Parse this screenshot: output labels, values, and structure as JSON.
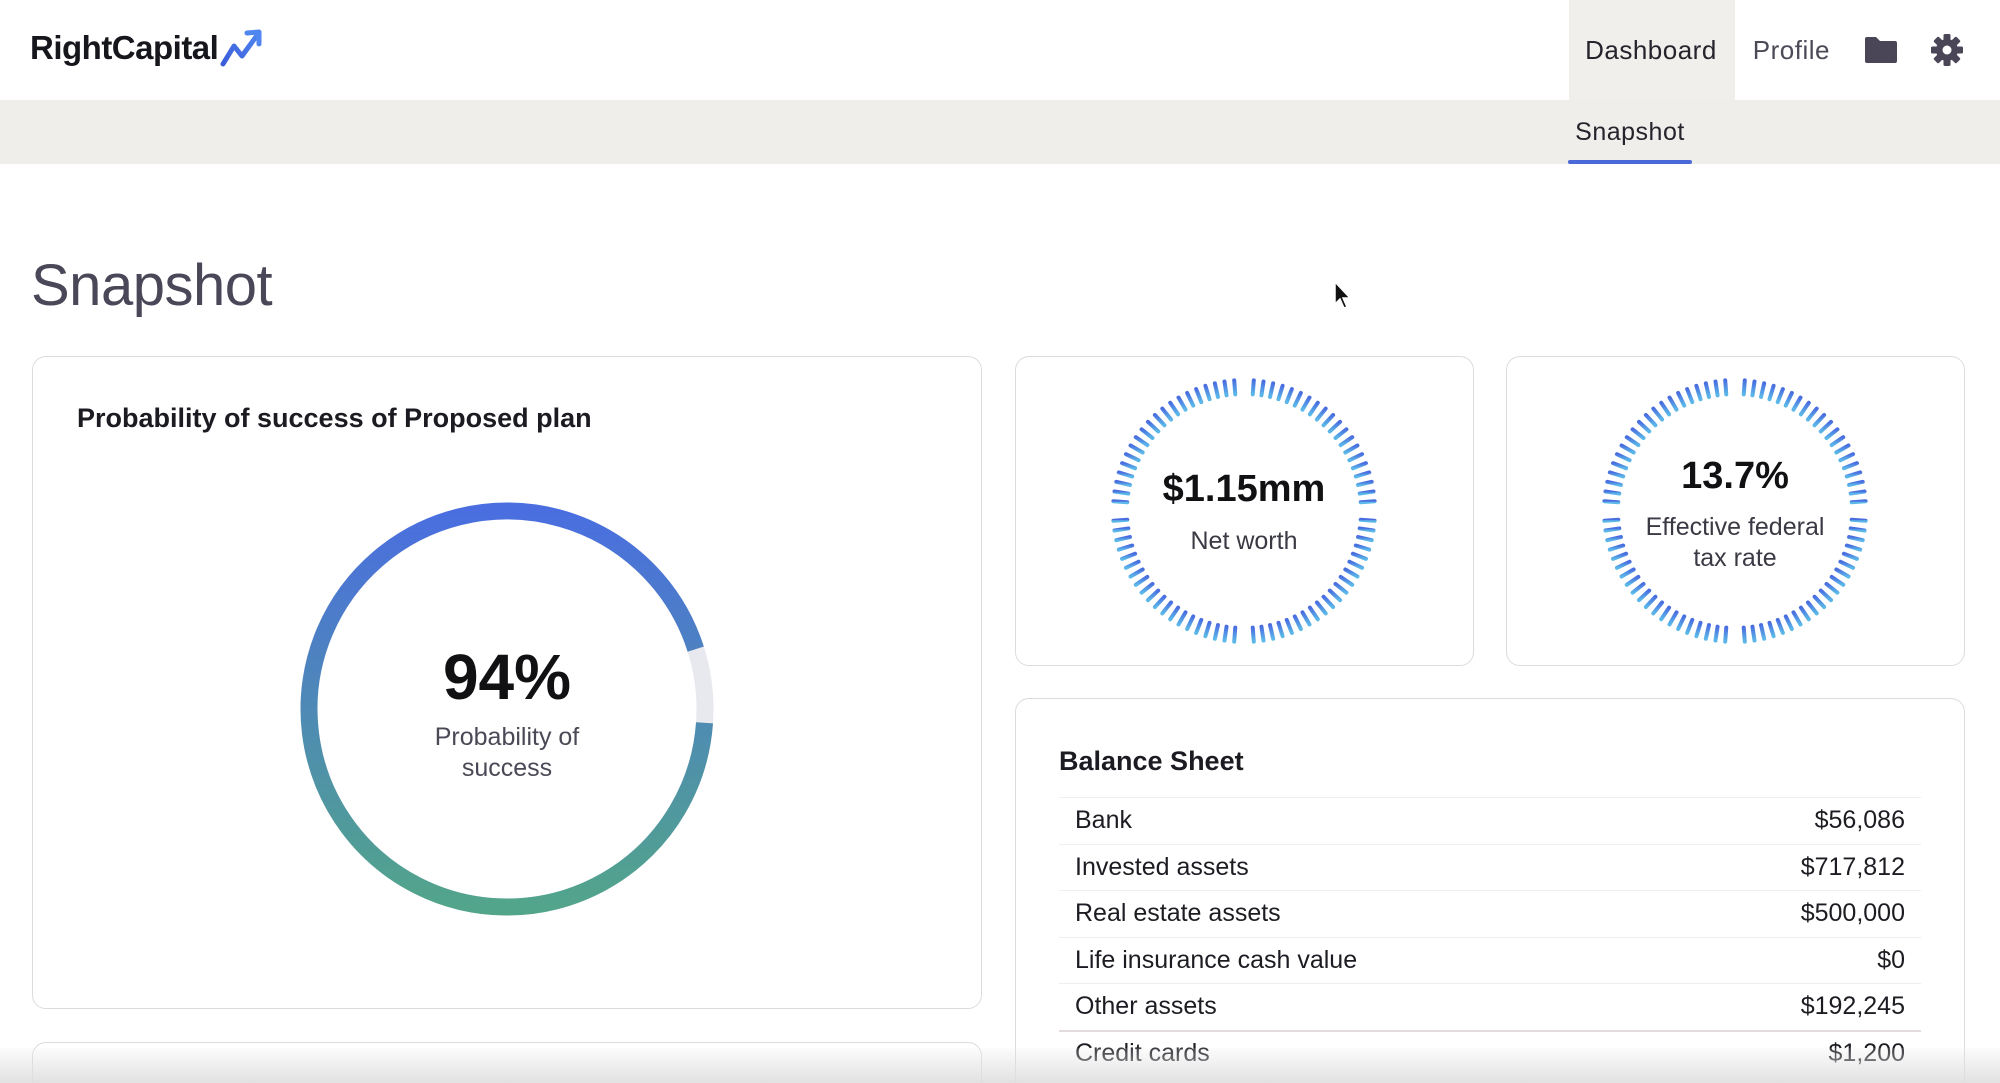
{
  "app": {
    "logo_text": "RightCapital",
    "logo_icon": "trending-up-arrow-icon",
    "accent_color": "#4a68d8"
  },
  "nav": {
    "tabs": [
      {
        "label": "Dashboard",
        "active": true
      },
      {
        "label": "Profile",
        "active": false
      }
    ],
    "icons": [
      "folder-icon",
      "gear-icon"
    ]
  },
  "subnav": {
    "tabs": [
      {
        "label": "Snapshot",
        "active": true
      }
    ]
  },
  "page": {
    "title": "Snapshot"
  },
  "probability_card": {
    "title": "Probability of success of Proposed plan",
    "value": "94%",
    "label": "Probability of success",
    "percent": 94
  },
  "net_worth_card": {
    "value": "$1.15mm",
    "label": "Net worth"
  },
  "tax_card": {
    "value": "13.7%",
    "label": "Effective federal tax rate"
  },
  "balance_sheet": {
    "title": "Balance Sheet",
    "rows": [
      {
        "label": "Bank",
        "value": "$56,086"
      },
      {
        "label": "Invested assets",
        "value": "$717,812"
      },
      {
        "label": "Real estate assets",
        "value": "$500,000"
      },
      {
        "label": "Life insurance cash value",
        "value": "$0"
      },
      {
        "label": "Other assets",
        "value": "$192,245"
      },
      {
        "label": "Credit cards",
        "value": "$1,200"
      }
    ]
  },
  "colors": {
    "gauge_start": "#4a6ee0",
    "gauge_end": "#52a58a",
    "gauge_track": "#e8e8ef",
    "dial_start": "#4a6ee0",
    "dial_end": "#5bb8e8"
  }
}
